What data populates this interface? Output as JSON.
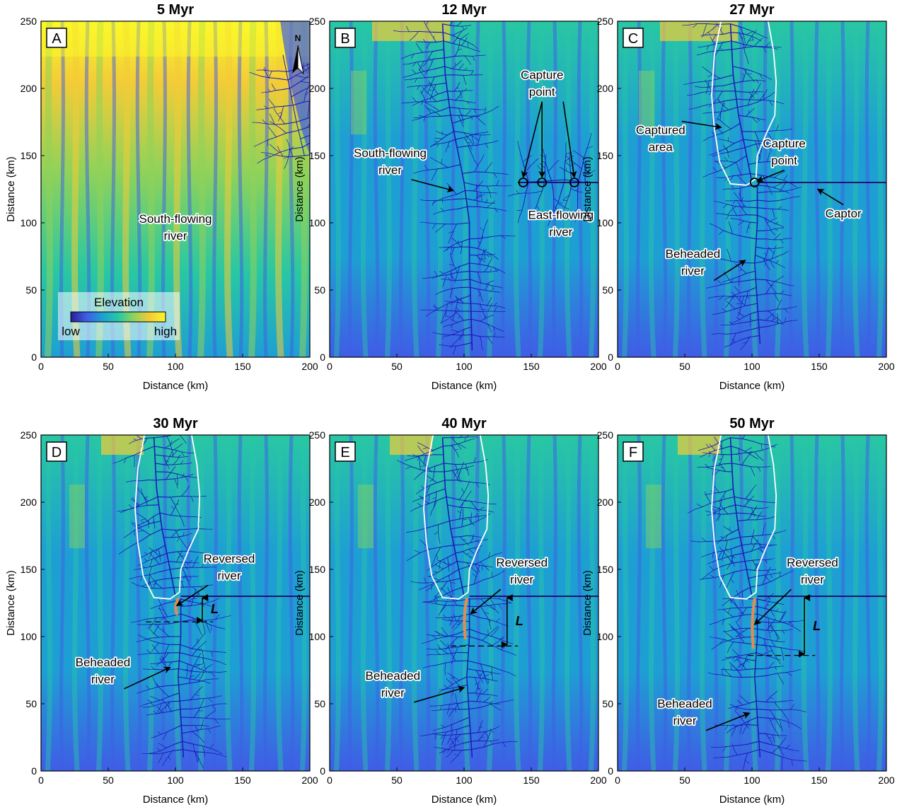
{
  "figure": {
    "panels": [
      {
        "id": "A",
        "title": "5 Myr",
        "stage": 0,
        "annotations": [
          {
            "lines": [
              "South-flowing",
              "river"
            ],
            "pos": [
              100,
              100
            ]
          }
        ],
        "legend": true,
        "north": true
      },
      {
        "id": "B",
        "title": "12 Myr",
        "stage": 1,
        "annotations": [
          {
            "lines": [
              "Capture",
              "point"
            ],
            "pos": [
              158,
              207
            ],
            "arrows": [
              [
                144,
                134
              ],
              [
                158,
                134
              ],
              [
                182,
                134
              ]
            ]
          },
          {
            "lines": [
              "South-flowing",
              "river"
            ],
            "pos": [
              45,
              149
            ],
            "arrows": [
              [
                92,
                124
              ]
            ]
          },
          {
            "lines": [
              "East-flowing",
              "river"
            ],
            "pos": [
              172,
              103
            ]
          }
        ]
      },
      {
        "id": "C",
        "title": "27 Myr",
        "stage": 2,
        "annotations": [
          {
            "lines": [
              "Captured",
              "area"
            ],
            "pos": [
              32,
              166
            ],
            "arrows": [
              [
                77,
                171
              ]
            ]
          },
          {
            "lines": [
              "Capture",
              "point"
            ],
            "pos": [
              124,
              156
            ],
            "arrows": [
              [
                104,
                131
              ]
            ]
          },
          {
            "lines": [
              "Captor"
            ],
            "pos": [
              168,
              104
            ],
            "arrows": [
              [
                149,
                125
              ]
            ]
          },
          {
            "lines": [
              "Beheaded",
              "river"
            ],
            "pos": [
              56,
              74
            ],
            "arrows": [
              [
                95,
                72
              ]
            ]
          }
        ]
      },
      {
        "id": "D",
        "title": "30 Myr",
        "stage": 3,
        "annotations": [
          {
            "lines": [
              "Reversed",
              "river"
            ],
            "pos": [
              140,
              155
            ],
            "arrows": [
              [
                101,
                123
              ]
            ]
          },
          {
            "lines": [
              "Beheaded",
              "river"
            ],
            "pos": [
              46,
              78
            ],
            "arrows": [
              [
                96,
                77
              ]
            ]
          }
        ],
        "L": {
          "x": 120,
          "top": 130,
          "bottom": 111
        }
      },
      {
        "id": "E",
        "title": "40 Myr",
        "stage": 4,
        "annotations": [
          {
            "lines": [
              "Reversed",
              "river"
            ],
            "pos": [
              143,
              152
            ],
            "arrows": [
              [
                105,
                117
              ]
            ]
          },
          {
            "lines": [
              "Beheaded",
              "river"
            ],
            "pos": [
              47,
              68
            ],
            "arrows": [
              [
                100,
                62
              ]
            ]
          }
        ],
        "L": {
          "x": 132,
          "top": 130,
          "bottom": 93
        }
      },
      {
        "id": "F",
        "title": "50 Myr",
        "stage": 5,
        "annotations": [
          {
            "lines": [
              "Reversed",
              "river"
            ],
            "pos": [
              145,
              152
            ],
            "arrows": [
              [
                102,
                109
              ]
            ]
          },
          {
            "lines": [
              "Beheaded",
              "river"
            ],
            "pos": [
              50,
              47
            ],
            "arrows": [
              [
                98,
                43
              ]
            ]
          }
        ],
        "L": {
          "x": 139,
          "top": 130,
          "bottom": 86
        }
      }
    ],
    "legend": {
      "title": "Elevation",
      "low": "low",
      "high": "high"
    },
    "north_label": "N",
    "axis": {
      "xlabel": "Distance (km)",
      "ylabel": "Distance (km)",
      "xlim": [
        0,
        200
      ],
      "ylim": [
        0,
        250
      ],
      "xticks": [
        0,
        50,
        100,
        150,
        200
      ],
      "yticks": [
        0,
        50,
        100,
        150,
        200,
        250
      ]
    },
    "L_symbol": "L",
    "colormap": [
      "#2a1e9a",
      "#3f5de6",
      "#1e9fd3",
      "#28c7a3",
      "#8fd25a",
      "#f3cc37",
      "#faf72a"
    ],
    "colors": {
      "river": "#1a1ab8",
      "boundary": "#ffffff",
      "reversed": "#e58a56",
      "captor": "#1c1470"
    }
  }
}
